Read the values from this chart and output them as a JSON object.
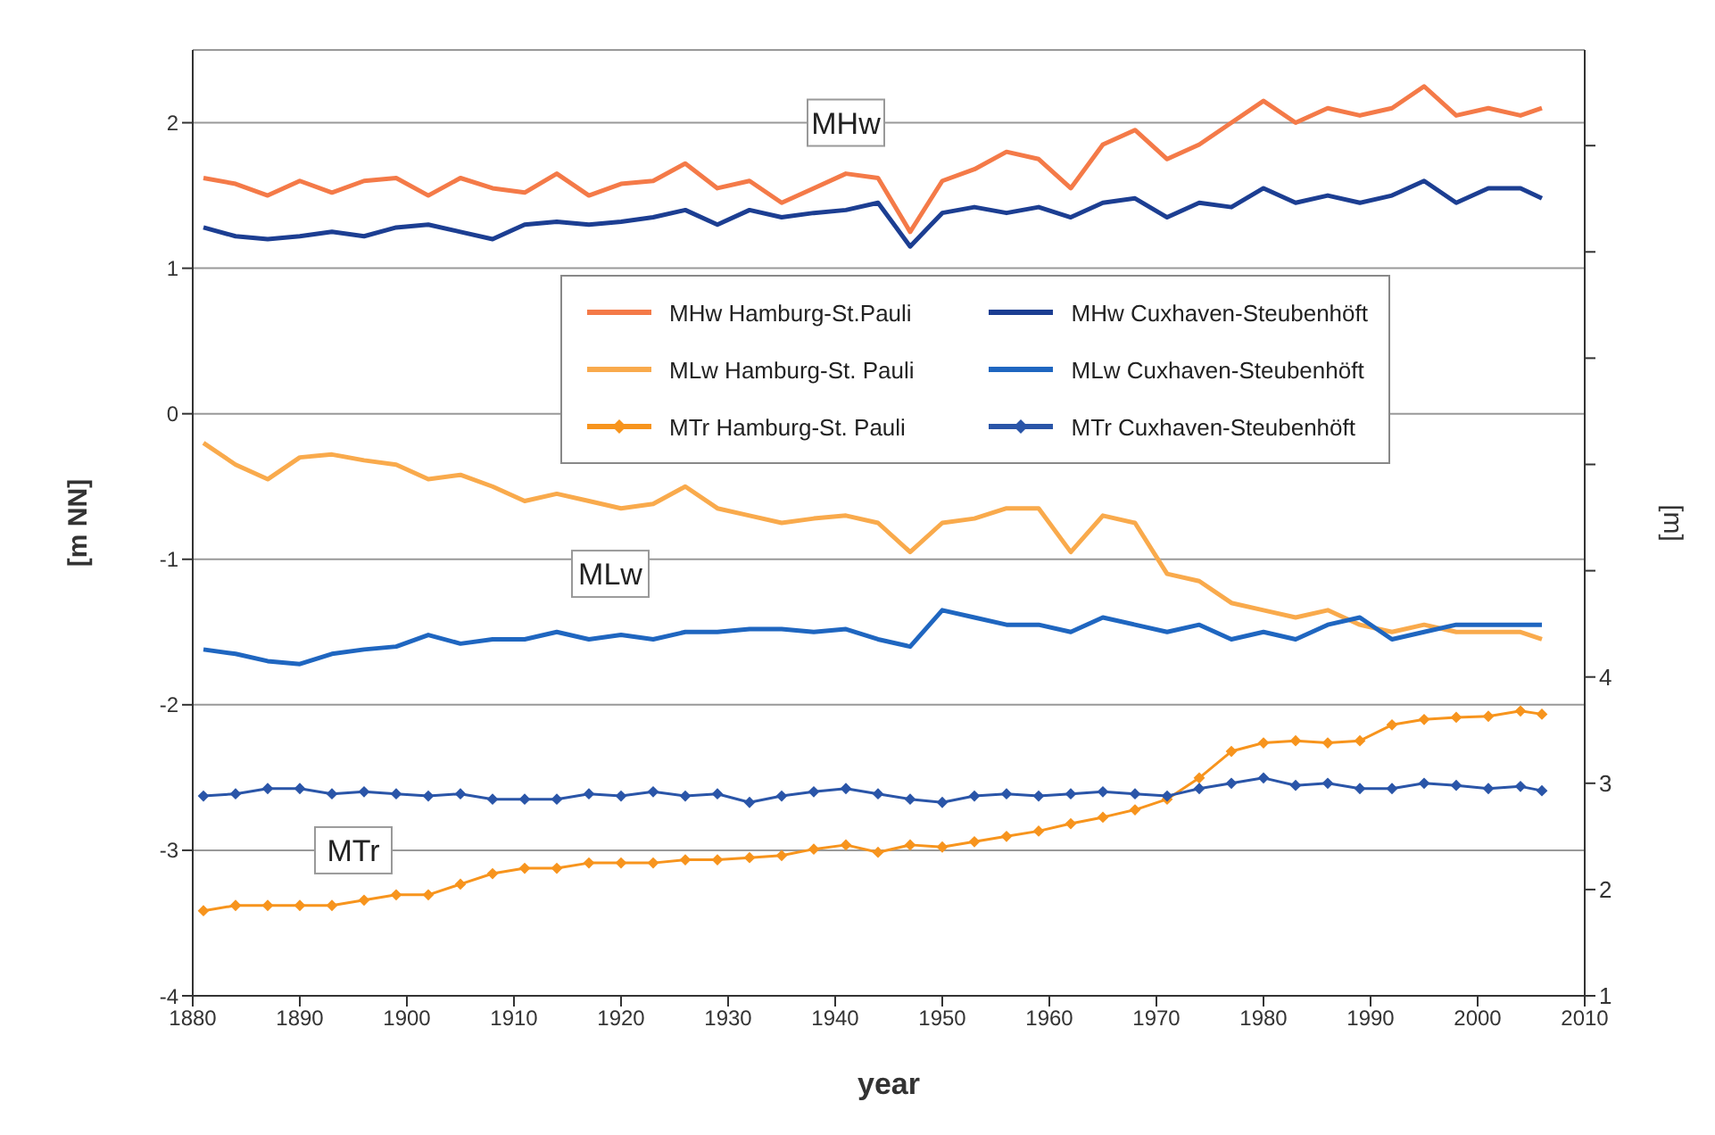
{
  "chart_data": {
    "type": "line",
    "xlabel": "year",
    "ylabel": "[m NN]",
    "y2label": "[m]",
    "x": [
      1881,
      1884,
      1887,
      1890,
      1893,
      1896,
      1899,
      1902,
      1905,
      1908,
      1911,
      1914,
      1917,
      1920,
      1923,
      1926,
      1929,
      1932,
      1935,
      1938,
      1941,
      1944,
      1947,
      1950,
      1953,
      1956,
      1959,
      1962,
      1965,
      1968,
      1971,
      1974,
      1977,
      1980,
      1983,
      1986,
      1989,
      1992,
      1995,
      1998,
      2001,
      2004,
      2006
    ],
    "xlim": [
      1880,
      2010
    ],
    "xticks": [
      1880,
      1890,
      1900,
      1910,
      1920,
      1930,
      1940,
      1950,
      1960,
      1970,
      1980,
      1990,
      2000,
      2010
    ],
    "ylim": [
      -4,
      2.5
    ],
    "yticks": [
      -4,
      -3,
      -2,
      -1,
      0,
      1,
      2
    ],
    "y2lim": [
      1,
      9.9
    ],
    "y2ticks": [
      1,
      2,
      3,
      4,
      {
        "value": 5,
        "label": null
      },
      {
        "value": 6,
        "label": null
      },
      {
        "value": 7,
        "label": null
      },
      {
        "value": 8,
        "label": null
      },
      {
        "value": 9,
        "label": null
      }
    ],
    "grid": "y",
    "legend": "top right",
    "line_style": "solid",
    "series": [
      {
        "name": "MHw Hamburg-St.Pauli",
        "color": "#f47a48",
        "marker": "none",
        "values": [
          1.62,
          1.58,
          1.5,
          1.6,
          1.52,
          1.6,
          1.62,
          1.5,
          1.62,
          1.55,
          1.52,
          1.65,
          1.5,
          1.58,
          1.6,
          1.72,
          1.55,
          1.6,
          1.45,
          1.55,
          1.65,
          1.62,
          1.25,
          1.6,
          1.68,
          1.8,
          1.75,
          1.55,
          1.85,
          1.95,
          1.75,
          1.85,
          2.0,
          2.15,
          2.0,
          2.1,
          2.05,
          2.1,
          2.25,
          2.05,
          2.1,
          2.05,
          2.1
        ]
      },
      {
        "name": "MLw Hamburg-St. Pauli",
        "color": "#f9aa4c",
        "marker": "none",
        "values": [
          -0.2,
          -0.35,
          -0.45,
          -0.3,
          -0.28,
          -0.32,
          -0.35,
          -0.45,
          -0.42,
          -0.5,
          -0.6,
          -0.55,
          -0.6,
          -0.65,
          -0.62,
          -0.5,
          -0.65,
          -0.7,
          -0.75,
          -0.72,
          -0.7,
          -0.75,
          -0.95,
          -0.75,
          -0.72,
          -0.65,
          -0.65,
          -0.95,
          -0.7,
          -0.75,
          -1.1,
          -1.15,
          -1.3,
          -1.35,
          -1.4,
          -1.35,
          -1.45,
          -1.5,
          -1.45,
          -1.5,
          -1.5,
          -1.5,
          -1.55
        ]
      },
      {
        "name": "MTr Hamburg-St. Pauli",
        "color": "#f7941d",
        "marker": "diamond",
        "axis": "y2",
        "values": [
          1.8,
          1.85,
          1.85,
          1.85,
          1.85,
          1.9,
          1.95,
          1.95,
          2.05,
          2.15,
          2.2,
          2.2,
          2.25,
          2.25,
          2.25,
          2.28,
          2.28,
          2.3,
          2.32,
          2.38,
          2.42,
          2.35,
          2.42,
          2.4,
          2.45,
          2.5,
          2.55,
          2.62,
          2.68,
          2.75,
          2.85,
          3.05,
          3.3,
          3.38,
          3.4,
          3.38,
          3.4,
          3.55,
          3.6,
          3.62,
          3.63,
          3.68,
          3.65
        ]
      },
      {
        "name": "MHw Cuxhaven-Steubenhöft",
        "color": "#1c3e92",
        "marker": "none",
        "values": [
          1.28,
          1.22,
          1.2,
          1.22,
          1.25,
          1.22,
          1.28,
          1.3,
          1.25,
          1.2,
          1.3,
          1.32,
          1.3,
          1.32,
          1.35,
          1.4,
          1.3,
          1.4,
          1.35,
          1.38,
          1.4,
          1.45,
          1.15,
          1.38,
          1.42,
          1.38,
          1.42,
          1.35,
          1.45,
          1.48,
          1.35,
          1.45,
          1.42,
          1.55,
          1.45,
          1.5,
          1.45,
          1.5,
          1.6,
          1.45,
          1.55,
          1.55,
          1.48
        ]
      },
      {
        "name": "MLw Cuxhaven-Steubenhöft",
        "color": "#1f66c0",
        "marker": "none",
        "values": [
          -1.62,
          -1.65,
          -1.7,
          -1.72,
          -1.65,
          -1.62,
          -1.6,
          -1.52,
          -1.58,
          -1.55,
          -1.55,
          -1.5,
          -1.55,
          -1.52,
          -1.55,
          -1.5,
          -1.5,
          -1.48,
          -1.48,
          -1.5,
          -1.48,
          -1.55,
          -1.6,
          -1.35,
          -1.4,
          -1.45,
          -1.45,
          -1.5,
          -1.4,
          -1.45,
          -1.5,
          -1.45,
          -1.55,
          -1.5,
          -1.55,
          -1.45,
          -1.4,
          -1.55,
          -1.5,
          -1.45,
          -1.45,
          -1.45,
          -1.45
        ]
      },
      {
        "name": "MTr Cuxhaven-Steubenhöft",
        "color": "#2a55a8",
        "marker": "diamond",
        "axis": "y2",
        "values": [
          2.88,
          2.9,
          2.95,
          2.95,
          2.9,
          2.92,
          2.9,
          2.88,
          2.9,
          2.85,
          2.85,
          2.85,
          2.9,
          2.88,
          2.92,
          2.88,
          2.9,
          2.82,
          2.88,
          2.92,
          2.95,
          2.9,
          2.85,
          2.82,
          2.88,
          2.9,
          2.88,
          2.9,
          2.92,
          2.9,
          2.88,
          2.95,
          3.0,
          3.05,
          2.98,
          3.0,
          2.95,
          2.95,
          3.0,
          2.98,
          2.95,
          2.97,
          2.93
        ]
      }
    ],
    "annotations": [
      {
        "text": "MHw",
        "x": 1941,
        "y": 2.0
      },
      {
        "text": "MLw",
        "x": 1919,
        "y": -1.1
      },
      {
        "text": "MTr",
        "x": 1895,
        "y": -3.0
      }
    ]
  }
}
